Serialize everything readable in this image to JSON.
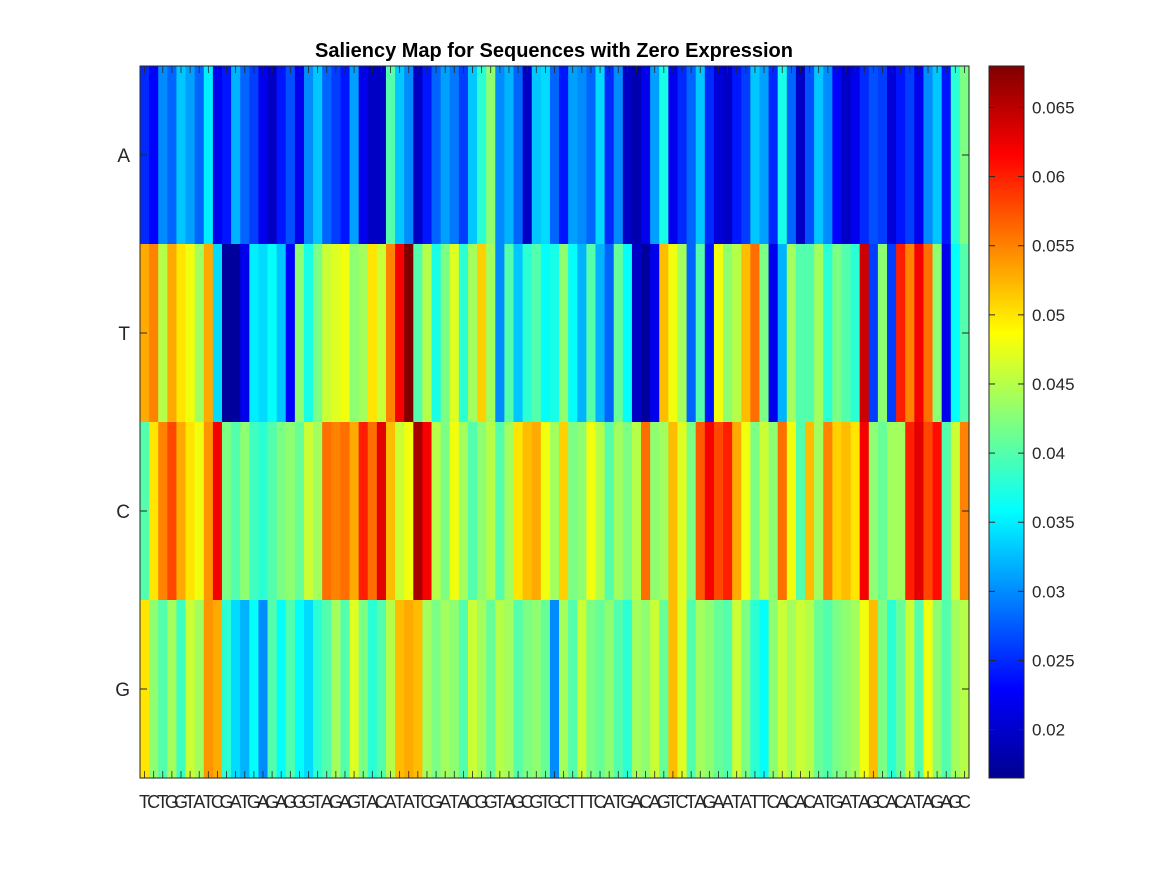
{
  "chart_data": {
    "type": "heatmap",
    "title": "Saliency Map for Sequences with Zero Expression",
    "rows": [
      "A",
      "T",
      "C",
      "G"
    ],
    "columns": [
      "T",
      "C",
      "T",
      "G",
      "G",
      "T",
      "A",
      "T",
      "C",
      "G",
      "A",
      "T",
      "G",
      "A",
      "G",
      "A",
      "G",
      "G",
      "G",
      "T",
      "A",
      "G",
      "A",
      "G",
      "T",
      "A",
      "C",
      "A",
      "T",
      "A",
      "T",
      "C",
      "G",
      "A",
      "T",
      "A",
      "C",
      "G",
      "G",
      "T",
      "A",
      "G",
      "C",
      "G",
      "T",
      "G",
      "C",
      "T",
      "T",
      "T",
      "C",
      "A",
      "T",
      "G",
      "A",
      "C",
      "A",
      "G",
      "T",
      "C",
      "T",
      "A",
      "G",
      "A",
      "A",
      "T",
      "A",
      "T",
      "T",
      "C",
      "A",
      "C",
      "A",
      "C",
      "A",
      "T",
      "G",
      "A",
      "T",
      "A",
      "G",
      "C",
      "A",
      "C",
      "A",
      "T",
      "A",
      "G",
      "A",
      "G",
      "C"
    ],
    "values": [
      [
        0.025,
        0.023,
        0.03,
        0.028,
        0.033,
        0.031,
        0.028,
        0.035,
        0.022,
        0.024,
        0.032,
        0.028,
        0.026,
        0.022,
        0.02,
        0.024,
        0.027,
        0.022,
        0.03,
        0.033,
        0.028,
        0.026,
        0.024,
        0.031,
        0.022,
        0.02,
        0.02,
        0.04,
        0.033,
        0.03,
        0.02,
        0.024,
        0.028,
        0.031,
        0.029,
        0.026,
        0.033,
        0.038,
        0.043,
        0.03,
        0.032,
        0.028,
        0.02,
        0.033,
        0.034,
        0.028,
        0.024,
        0.031,
        0.03,
        0.028,
        0.034,
        0.025,
        0.03,
        0.02,
        0.019,
        0.022,
        0.031,
        0.037,
        0.022,
        0.025,
        0.028,
        0.033,
        0.025,
        0.021,
        0.02,
        0.024,
        0.026,
        0.033,
        0.031,
        0.025,
        0.037,
        0.028,
        0.02,
        0.027,
        0.033,
        0.03,
        0.023,
        0.02,
        0.022,
        0.025,
        0.027,
        0.026,
        0.021,
        0.024,
        0.026,
        0.022,
        0.03,
        0.033,
        0.024,
        0.038,
        0.042
      ],
      [
        0.053,
        0.055,
        0.045,
        0.053,
        0.05,
        0.048,
        0.044,
        0.053,
        0.034,
        0.018,
        0.018,
        0.022,
        0.035,
        0.034,
        0.036,
        0.033,
        0.023,
        0.043,
        0.037,
        0.042,
        0.046,
        0.047,
        0.048,
        0.043,
        0.044,
        0.05,
        0.046,
        0.055,
        0.062,
        0.068,
        0.04,
        0.045,
        0.037,
        0.042,
        0.047,
        0.038,
        0.044,
        0.051,
        0.044,
        0.03,
        0.04,
        0.033,
        0.038,
        0.04,
        0.036,
        0.037,
        0.043,
        0.036,
        0.032,
        0.04,
        0.032,
        0.028,
        0.041,
        0.036,
        0.02,
        0.018,
        0.022,
        0.052,
        0.048,
        0.044,
        0.028,
        0.04,
        0.024,
        0.048,
        0.043,
        0.045,
        0.052,
        0.056,
        0.042,
        0.022,
        0.032,
        0.044,
        0.04,
        0.04,
        0.044,
        0.038,
        0.042,
        0.04,
        0.038,
        0.064,
        0.026,
        0.043,
        0.026,
        0.06,
        0.055,
        0.062,
        0.056,
        0.043,
        0.022,
        0.036,
        0.04
      ],
      [
        0.04,
        0.05,
        0.055,
        0.058,
        0.053,
        0.05,
        0.048,
        0.054,
        0.062,
        0.042,
        0.04,
        0.043,
        0.039,
        0.038,
        0.04,
        0.042,
        0.043,
        0.041,
        0.046,
        0.044,
        0.056,
        0.055,
        0.056,
        0.053,
        0.06,
        0.056,
        0.063,
        0.052,
        0.046,
        0.048,
        0.066,
        0.062,
        0.045,
        0.042,
        0.048,
        0.044,
        0.04,
        0.043,
        0.045,
        0.04,
        0.044,
        0.05,
        0.052,
        0.053,
        0.048,
        0.044,
        0.051,
        0.042,
        0.043,
        0.048,
        0.045,
        0.04,
        0.044,
        0.042,
        0.045,
        0.056,
        0.043,
        0.044,
        0.052,
        0.047,
        0.042,
        0.057,
        0.062,
        0.058,
        0.06,
        0.053,
        0.048,
        0.042,
        0.046,
        0.043,
        0.056,
        0.048,
        0.04,
        0.052,
        0.044,
        0.055,
        0.051,
        0.052,
        0.05,
        0.062,
        0.043,
        0.041,
        0.044,
        0.044,
        0.06,
        0.063,
        0.058,
        0.061,
        0.04,
        0.046,
        0.055
      ],
      [
        0.05,
        0.043,
        0.04,
        0.044,
        0.039,
        0.046,
        0.044,
        0.054,
        0.053,
        0.038,
        0.034,
        0.032,
        0.036,
        0.03,
        0.04,
        0.036,
        0.04,
        0.036,
        0.034,
        0.038,
        0.04,
        0.044,
        0.04,
        0.047,
        0.042,
        0.038,
        0.04,
        0.045,
        0.052,
        0.053,
        0.052,
        0.044,
        0.042,
        0.044,
        0.043,
        0.04,
        0.046,
        0.044,
        0.041,
        0.045,
        0.044,
        0.04,
        0.042,
        0.043,
        0.041,
        0.03,
        0.044,
        0.04,
        0.046,
        0.042,
        0.041,
        0.043,
        0.04,
        0.038,
        0.044,
        0.043,
        0.046,
        0.041,
        0.052,
        0.047,
        0.04,
        0.044,
        0.043,
        0.041,
        0.04,
        0.046,
        0.042,
        0.038,
        0.036,
        0.043,
        0.046,
        0.044,
        0.046,
        0.045,
        0.041,
        0.04,
        0.042,
        0.043,
        0.044,
        0.048,
        0.052,
        0.042,
        0.038,
        0.041,
        0.046,
        0.04,
        0.048,
        0.043,
        0.04,
        0.044,
        0.045
      ]
    ],
    "colorbar": {
      "min": 0.0165,
      "max": 0.068,
      "ticks": [
        "0.02",
        "0.025",
        "0.03",
        "0.035",
        "0.04",
        "0.045",
        "0.05",
        "0.055",
        "0.06",
        "0.065"
      ],
      "colormap": "jet"
    },
    "xlabel": "",
    "ylabel": "",
    "grid": false
  }
}
